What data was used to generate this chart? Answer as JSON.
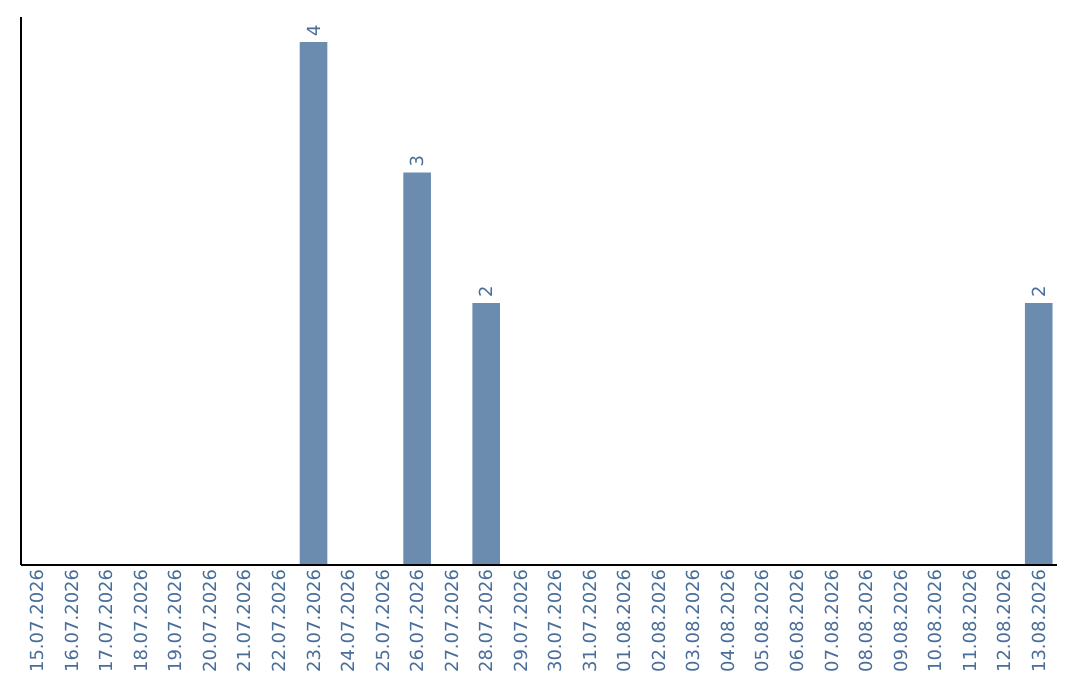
{
  "chart_data": {
    "type": "bar",
    "categories": [
      "15.07.2026",
      "16.07.2026",
      "17.07.2026",
      "18.07.2026",
      "19.07.2026",
      "20.07.2026",
      "21.07.2026",
      "22.07.2026",
      "23.07.2026",
      "24.07.2026",
      "25.07.2026",
      "26.07.2026",
      "27.07.2026",
      "28.07.2026",
      "29.07.2026",
      "30.07.2026",
      "31.07.2026",
      "01.08.2026",
      "02.08.2026",
      "03.08.2026",
      "04.08.2026",
      "05.08.2026",
      "06.08.2026",
      "07.08.2026",
      "08.08.2026",
      "09.08.2026",
      "10.08.2026",
      "11.08.2026",
      "12.08.2026",
      "13.08.2026"
    ],
    "values": [
      0,
      0,
      0,
      0,
      0,
      0,
      0,
      0,
      4,
      0,
      0,
      3,
      0,
      2,
      0,
      0,
      0,
      0,
      0,
      0,
      0,
      0,
      0,
      0,
      0,
      0,
      0,
      0,
      0,
      2
    ],
    "value_labels": [
      null,
      null,
      null,
      null,
      null,
      null,
      null,
      null,
      "4",
      null,
      null,
      "3",
      null,
      "2",
      null,
      null,
      null,
      null,
      null,
      null,
      null,
      null,
      null,
      null,
      null,
      null,
      null,
      null,
      null,
      "2"
    ],
    "color": "#6b8caf",
    "ylim": [
      0,
      4.2
    ],
    "tick_labels": "x",
    "grid": false
  }
}
